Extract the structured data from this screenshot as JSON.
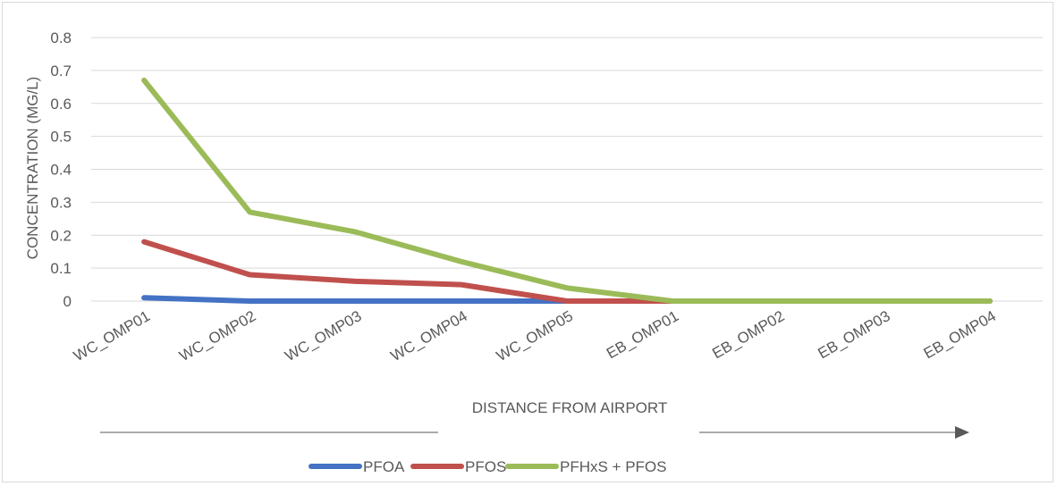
{
  "chart_data": {
    "type": "line",
    "title": "",
    "xlabel": "DISTANCE FROM AIRPORT",
    "ylabel": "CONCENTRATION (MG/L)",
    "ylim": [
      0,
      0.8
    ],
    "yticks": [
      "0",
      "0.1",
      "0.2",
      "0.3",
      "0.4",
      "0.5",
      "0.6",
      "0.7",
      "0.8"
    ],
    "grid": true,
    "legend_position": "bottom",
    "categories": [
      "WC_OMP01",
      "WC_OMP02",
      "WC_OMP03",
      "WC_OMP04",
      "WC_OMP05",
      "EB_OMP01",
      "EB_OMP02",
      "EB_OMP03",
      "EB_OMP04"
    ],
    "series": [
      {
        "name": "PFOA",
        "color": "#4472c4",
        "values": [
          0.01,
          0,
          0,
          0,
          0,
          0,
          0,
          0,
          0
        ]
      },
      {
        "name": "PFOS",
        "color": "#c0504d",
        "values": [
          0.18,
          0.08,
          0.06,
          0.05,
          0,
          0,
          0,
          0,
          0
        ]
      },
      {
        "name": "PFHxS + PFOS",
        "color": "#9bbb59",
        "values": [
          0.67,
          0.27,
          0.21,
          0.12,
          0.04,
          0,
          0,
          0,
          0
        ]
      }
    ],
    "annotation": "arrow below axis title pointing right (increasing distance)"
  }
}
